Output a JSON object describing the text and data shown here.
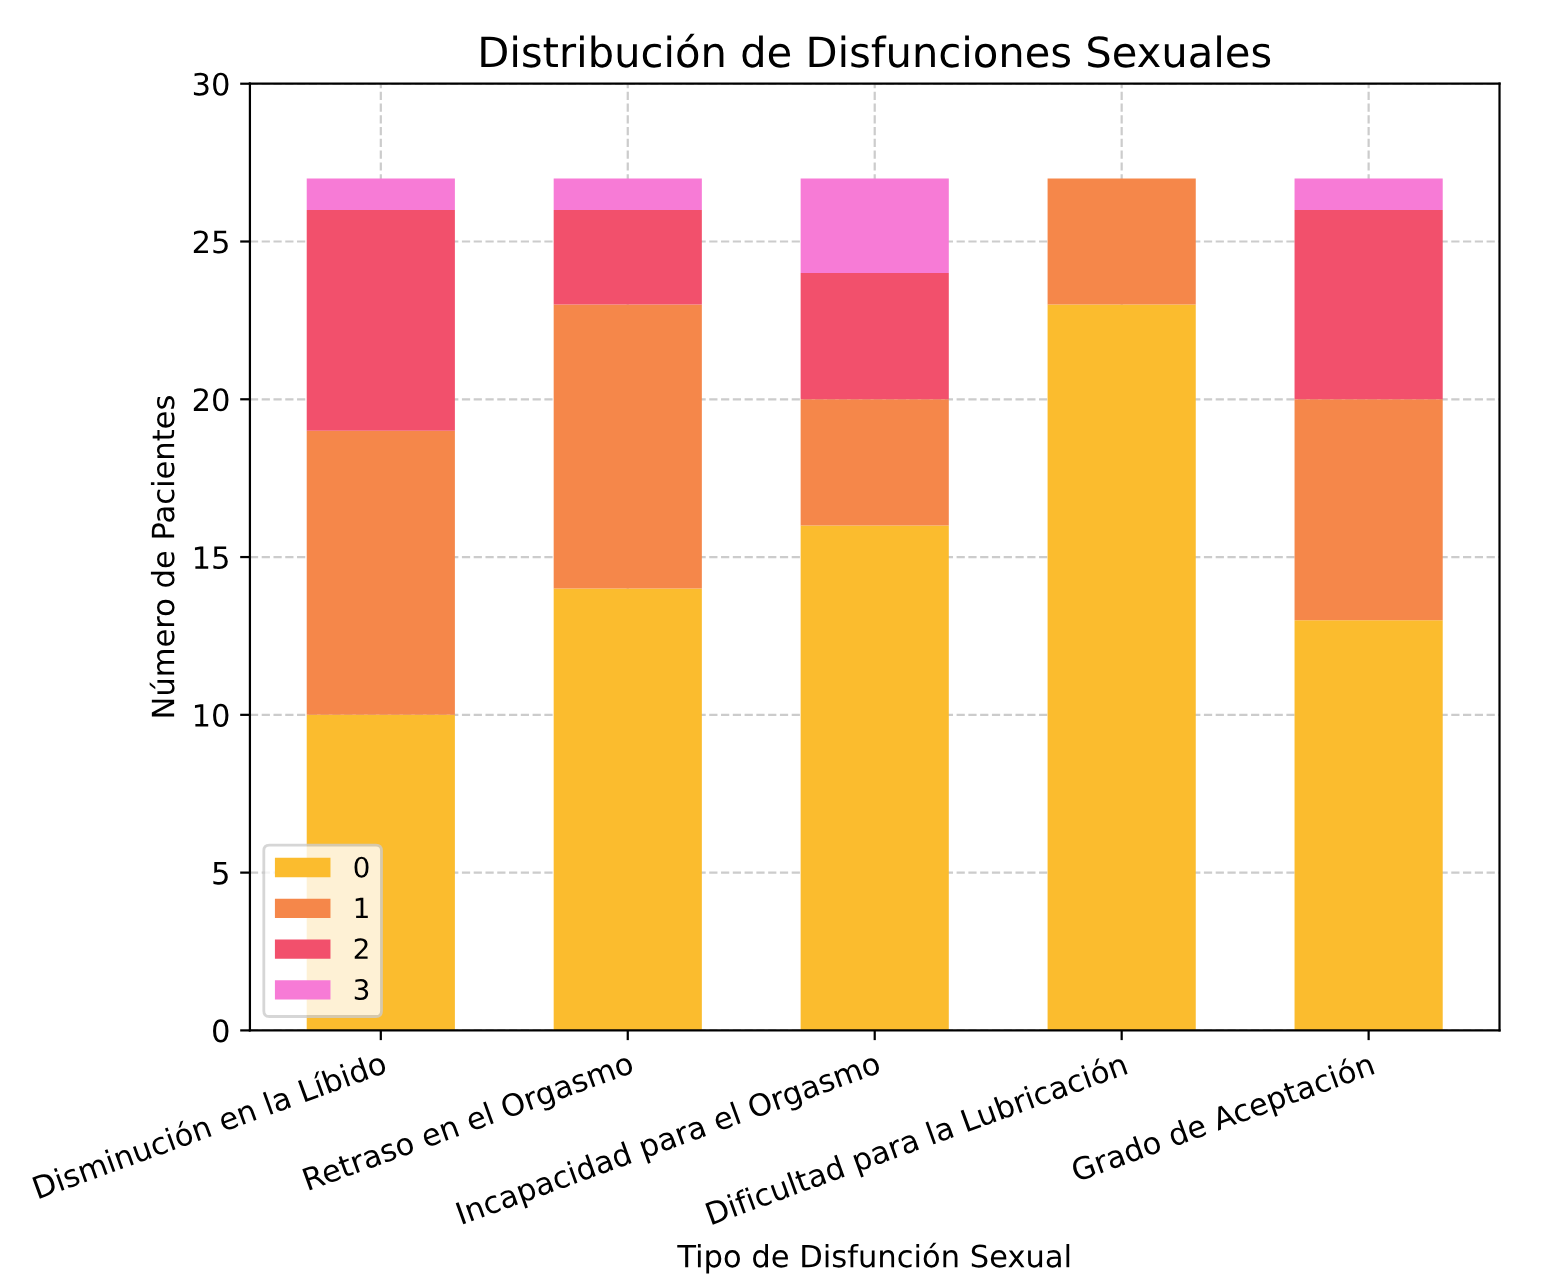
{
  "chart_data": {
    "type": "bar",
    "title": "Distribución de Disfunciones Sexuales",
    "xlabel": "Tipo de Disfunción Sexual",
    "ylabel": "Número de Pacientes",
    "categories": [
      "Disminución en la Líbido",
      "Retraso en el Orgasmo",
      "Incapacidad para el Orgasmo",
      "Dificultad para la Lubricación",
      "Grado de Aceptación"
    ],
    "stacked": true,
    "series": [
      {
        "name": "0",
        "color": "#fbbc2e",
        "values": [
          10,
          14,
          16,
          23,
          13
        ]
      },
      {
        "name": "1",
        "color": "#f5874a",
        "values": [
          9,
          9,
          4,
          4,
          7
        ]
      },
      {
        "name": "2",
        "color": "#f2506c",
        "values": [
          7,
          3,
          4,
          0,
          6
        ]
      },
      {
        "name": "3",
        "color": "#f77bd6",
        "values": [
          1,
          1,
          3,
          0,
          1
        ]
      }
    ],
    "ylim": [
      0,
      30
    ],
    "yticks": [
      0,
      5,
      10,
      15,
      20,
      25,
      30
    ],
    "grid": true,
    "legend": "bottom left"
  }
}
